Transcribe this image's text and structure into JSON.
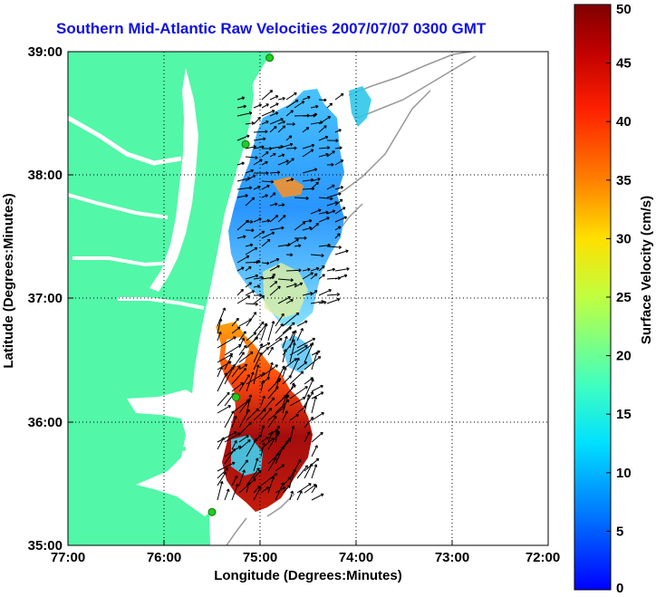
{
  "title": "Southern Mid-Atlantic Raw Velocities 2007/07/07 0300 GMT",
  "x_axis": {
    "label": "Longitude (Degrees:Minutes)",
    "ticks": [
      "77:00",
      "76:00",
      "75:00",
      "74:00",
      "73:00",
      "72:00"
    ]
  },
  "y_axis": {
    "label": "Latitude (Degrees:Minutes)",
    "ticks": [
      "39:00",
      "38:00",
      "37:00",
      "36:00",
      "35:00"
    ]
  },
  "colorbar": {
    "label": "Surface Velocity (cm/s)",
    "ticks": [
      "0",
      "5",
      "10",
      "15",
      "20",
      "25",
      "30",
      "35",
      "40",
      "45",
      "50"
    ],
    "min": 0,
    "max": 50,
    "colormap": [
      "#0000ff",
      "#0080ff",
      "#00e0ff",
      "#40ffc0",
      "#c0ff40",
      "#ffe000",
      "#ff8000",
      "#ff2000",
      "#c00000",
      "#800000"
    ]
  },
  "colors": {
    "land": "#52f7a8",
    "water": "#ffffff",
    "grid": "#000000",
    "bathymetry": "#999999",
    "station": "#22cc22"
  },
  "map_extent": {
    "lon_min": -77.0,
    "lon_max": -72.0,
    "lat_min": 35.0,
    "lat_max": 39.0
  },
  "stations": [
    {
      "lon": -74.9,
      "lat": 38.95
    },
    {
      "lon": -75.15,
      "lat": 38.25
    },
    {
      "lon": -75.25,
      "lat": 36.2
    },
    {
      "lon": -75.5,
      "lat": 35.27
    }
  ]
}
